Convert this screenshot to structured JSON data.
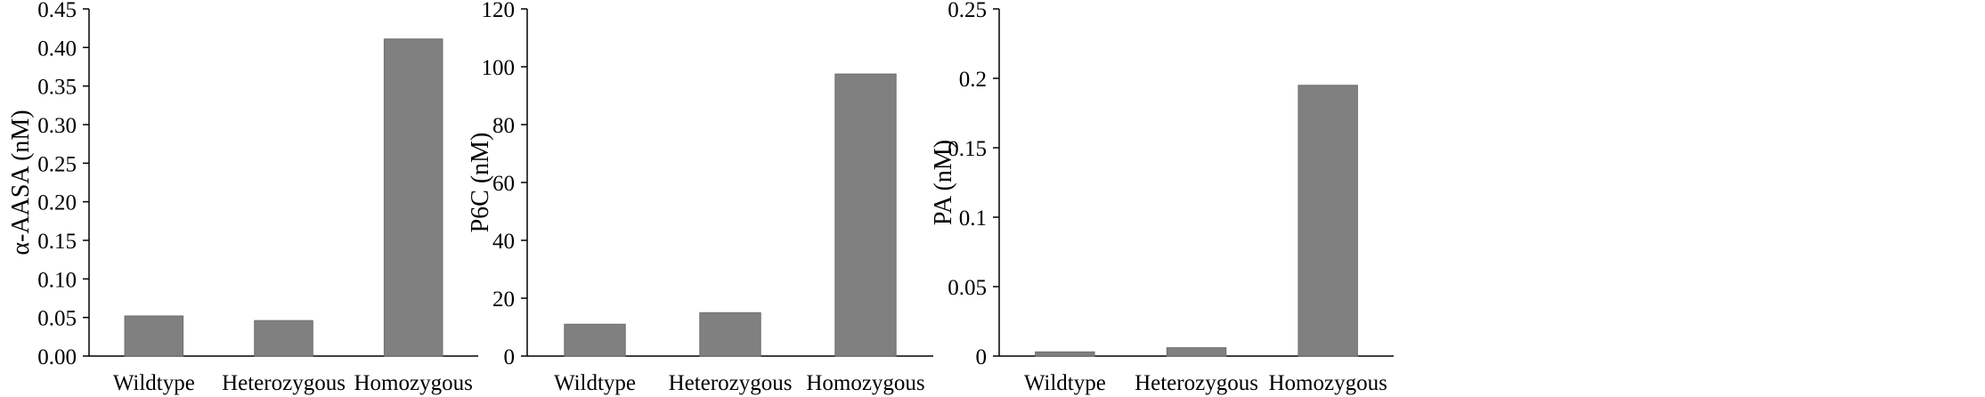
{
  "bar_color": "#808080",
  "axis_color": "#000000",
  "chart_data": [
    {
      "type": "bar",
      "categories": [
        "Wildtype",
        "Heterozygous",
        "Homozygous"
      ],
      "values": [
        0.052,
        0.046,
        0.411
      ],
      "ylabel": "α-AASA (nM)",
      "ylim": [
        0,
        0.45
      ],
      "yticks": [
        "0.00",
        "0.05",
        "0.10",
        "0.15",
        "0.20",
        "0.25",
        "0.30",
        "0.35",
        "0.40",
        "0.45"
      ],
      "grid": false
    },
    {
      "type": "bar",
      "categories": [
        "Wildtype",
        "Heterozygous",
        "Homozygous"
      ],
      "values": [
        11,
        15,
        97.5
      ],
      "ylabel": "P6C (nM)",
      "ylim": [
        0,
        120
      ],
      "yticks": [
        "0",
        "20",
        "40",
        "60",
        "80",
        "100",
        "120"
      ],
      "grid": false
    },
    {
      "type": "bar",
      "categories": [
        "Wildtype",
        "Heterozygous",
        "Homozygous"
      ],
      "values": [
        0.003,
        0.006,
        0.195
      ],
      "ylabel": "PA (nM)",
      "ylim": [
        0,
        0.25
      ],
      "yticks": [
        "0",
        "0.05",
        "0.1",
        "0.15",
        "0.2",
        "0.25"
      ],
      "grid": false
    }
  ]
}
